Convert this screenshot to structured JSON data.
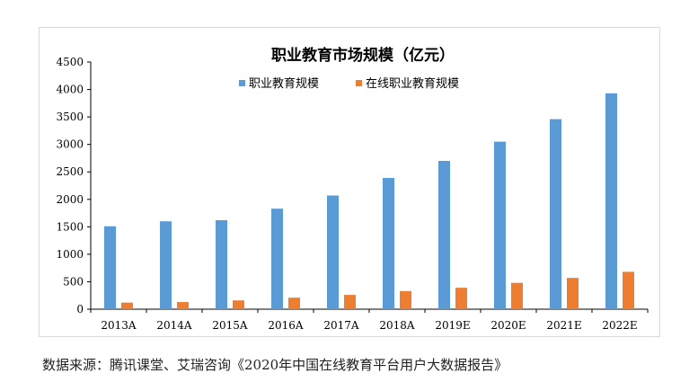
{
  "source_text": "数据来源：腾讯课堂、艾瑞咨询《2020年中国在线教育平台用户大数据报告》",
  "chart_data": {
    "type": "bar",
    "title": "职业教育市场规模（亿元）",
    "xlabel": "",
    "ylabel": "",
    "categories": [
      "2013A",
      "2014A",
      "2015A",
      "2016A",
      "2017A",
      "2018A",
      "2019E",
      "2020E",
      "2021E",
      "2022E"
    ],
    "series": [
      {
        "name": "职业教育规模",
        "color": "#5b9bd5",
        "values": [
          1510,
          1600,
          1620,
          1830,
          2070,
          2390,
          2700,
          3050,
          3460,
          3930
        ]
      },
      {
        "name": "在线职业教育规模",
        "color": "#ed7d31",
        "values": [
          120,
          130,
          160,
          210,
          260,
          330,
          390,
          480,
          570,
          680
        ]
      }
    ],
    "ylim": [
      0,
      4500
    ],
    "yticks": [
      0,
      500,
      1000,
      1500,
      2000,
      2500,
      3000,
      3500,
      4000,
      4500
    ],
    "grid": false,
    "legend_position": "top"
  }
}
